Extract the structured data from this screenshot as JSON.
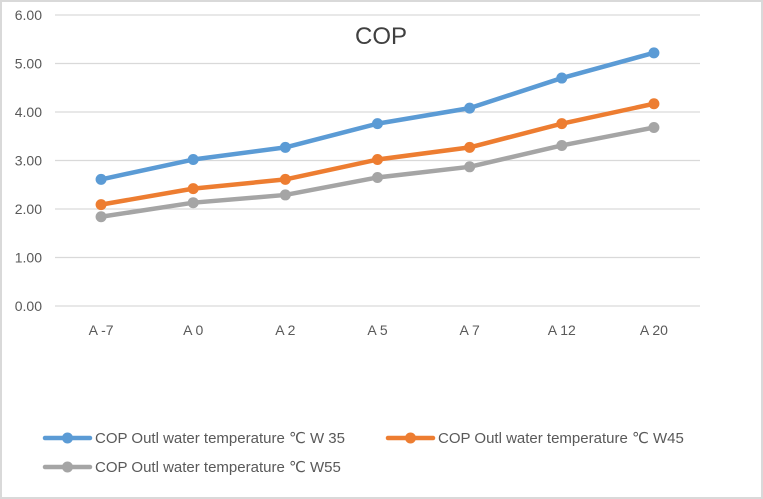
{
  "chart_data": {
    "type": "line",
    "title": "COP",
    "xlabel": "",
    "ylabel": "",
    "categories": [
      "A -7",
      "A 0",
      "A 2",
      "A 5",
      "A 7",
      "A 12",
      "A 20"
    ],
    "ylim": [
      0,
      6
    ],
    "yticks": [
      "0.00",
      "1.00",
      "2.00",
      "3.00",
      "4.00",
      "5.00",
      "6.00"
    ],
    "grid": true,
    "legend_position": "bottom",
    "series": [
      {
        "name": "COP Outl water temperature ℃ W 35",
        "color": "#5b9bd5",
        "values": [
          2.61,
          3.02,
          3.27,
          3.76,
          4.08,
          4.7,
          5.22
        ]
      },
      {
        "name": "COP Outl water temperature ℃ W45",
        "color": "#ed7d31",
        "values": [
          2.09,
          2.42,
          2.61,
          3.02,
          3.27,
          3.76,
          4.17
        ]
      },
      {
        "name": "COP Outl water temperature ℃ W55",
        "color": "#a5a5a5",
        "values": [
          1.84,
          2.13,
          2.29,
          2.65,
          2.87,
          3.31,
          3.68
        ]
      }
    ]
  }
}
